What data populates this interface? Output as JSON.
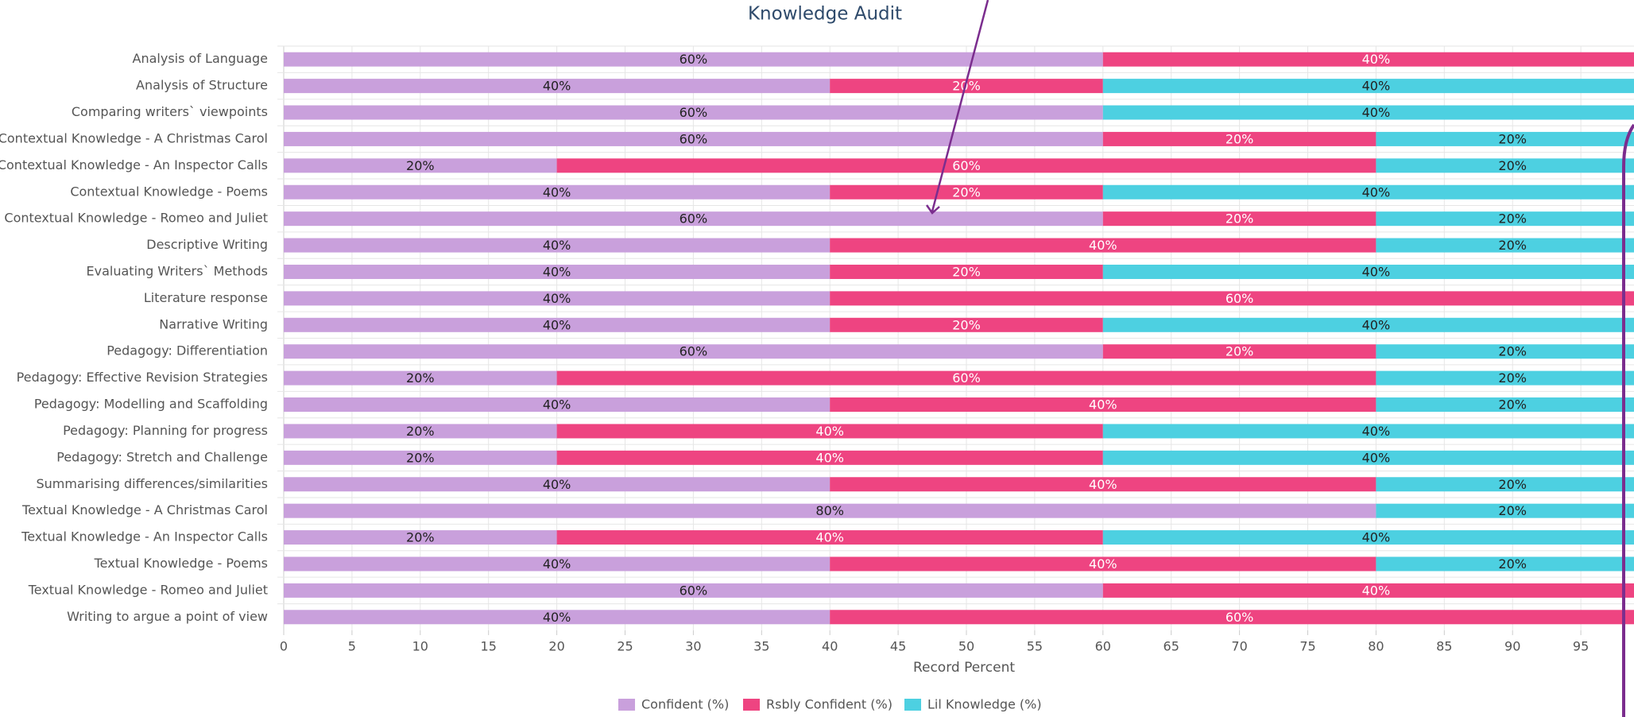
{
  "chart_data": {
    "type": "stacked-bar-horizontal",
    "title": "Knowledge Audit",
    "x_label": "Record Percent",
    "categories": [
      "Analysis of Language",
      "Analysis of Structure",
      "Comparing writers` viewpoints",
      "Contextual Knowledge - A Christmas Carol",
      "Contextual Knowledge - An Inspector Calls",
      "Contextual Knowledge - Poems",
      "Contextual Knowledge - Romeo and Juliet",
      "Descriptive Writing",
      "Evaluating Writers` Methods",
      "Literature response",
      "Narrative Writing",
      "Pedagogy: Differentiation",
      "Pedagogy: Effective Revision Strategies",
      "Pedagogy: Modelling and Scaffolding",
      "Pedagogy: Planning for progress",
      "Pedagogy: Stretch and Challenge",
      "Summarising differences/similarities",
      "Textual Knowledge - A Christmas Carol",
      "Textual Knowledge - An Inspector Calls",
      "Textual Knowledge - Poems",
      "Textual Knowledge - Romeo and Juliet",
      "Writing to argue a point of view"
    ],
    "series": [
      {
        "name": "Confident (%)",
        "color": "#c9a0dc",
        "label_color": "#222222",
        "values": [
          60,
          40,
          60,
          60,
          20,
          40,
          60,
          40,
          40,
          40,
          40,
          60,
          20,
          40,
          20,
          20,
          40,
          80,
          20,
          40,
          60,
          40
        ],
        "value_labels": [
          "60%",
          "40%",
          "60%",
          "60%",
          "20%",
          "40%",
          "60%",
          "40%",
          "40%",
          "40%",
          "40%",
          "60%",
          "20%",
          "40%",
          "20%",
          "20%",
          "40%",
          "80%",
          "20%",
          "40%",
          "60%",
          "40%"
        ]
      },
      {
        "name": "Rsbly Confident (%)",
        "color": "#ee4481",
        "label_color": "#ffffff",
        "values": [
          40,
          20,
          null,
          20,
          60,
          20,
          20,
          40,
          20,
          60,
          20,
          20,
          60,
          40,
          40,
          40,
          40,
          null,
          40,
          40,
          40,
          60
        ],
        "value_labels": [
          "40%",
          "20%",
          null,
          "20%",
          "60%",
          "20%",
          "20%",
          "40%",
          "20%",
          "60%",
          "20%",
          "20%",
          "60%",
          "40%",
          "40%",
          "40%",
          "40%",
          null,
          "40%",
          "40%",
          "40%",
          "60%"
        ]
      },
      {
        "name": "Lil Knowledge (%)",
        "color": "#4dd0e1",
        "label_color": "#222222",
        "values": [
          null,
          40,
          40,
          20,
          20,
          40,
          20,
          20,
          40,
          null,
          40,
          20,
          20,
          20,
          40,
          40,
          20,
          20,
          40,
          20,
          null,
          null
        ],
        "value_labels": [
          null,
          "40%",
          "40%",
          "20%",
          "20%",
          "40%",
          "20%",
          "20%",
          "40%",
          null,
          "40%",
          "20%",
          "20%",
          "20%",
          "40%",
          "40%",
          "20%",
          "20%",
          "40%",
          "20%",
          null,
          null
        ]
      }
    ],
    "xlim": [
      0,
      100
    ],
    "xticks": [
      0,
      5,
      10,
      15,
      20,
      25,
      30,
      35,
      40,
      45,
      50,
      55,
      60,
      65,
      70,
      75,
      80,
      85,
      90,
      95
    ],
    "grid": true
  }
}
